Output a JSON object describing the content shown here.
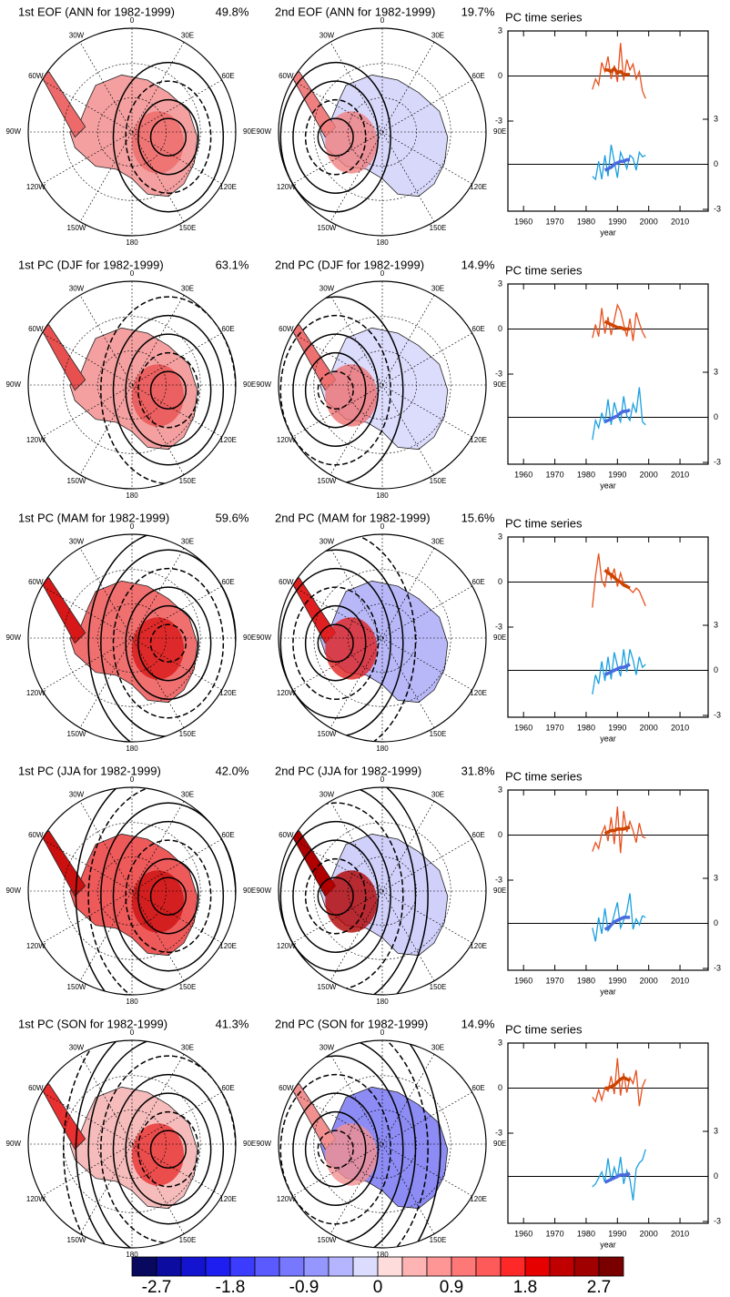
{
  "map_labels": [
    "0",
    "30E",
    "60E",
    "90E",
    "120E",
    "150E",
    "180",
    "150W",
    "120W",
    "90W",
    "60W",
    "30W"
  ],
  "rows": [
    {
      "maps": [
        {
          "title": "1st EOF (ANN for 1982-1999)",
          "variance": "49.8%"
        },
        {
          "title": "2nd EOF (ANN for 1982-1999)",
          "variance": "19.7%"
        }
      ]
    },
    {
      "maps": [
        {
          "title": "1st PC (DJF for 1982-1999)",
          "variance": "63.1%"
        },
        {
          "title": "2nd PC (DJF for 1982-1999)",
          "variance": "14.9%"
        }
      ]
    },
    {
      "maps": [
        {
          "title": "1st PC (MAM for 1982-1999)",
          "variance": "59.6%"
        },
        {
          "title": "2nd PC (MAM for 1982-1999)",
          "variance": "15.6%"
        }
      ]
    },
    {
      "maps": [
        {
          "title": "1st PC (JJA for 1982-1999)",
          "variance": "42.0%"
        },
        {
          "title": "2nd PC (JJA for 1982-1999)",
          "variance": "31.8%"
        }
      ]
    },
    {
      "maps": [
        {
          "title": "1st PC (SON for 1982-1999)",
          "variance": "41.3%"
        },
        {
          "title": "2nd PC (SON for 1982-1999)",
          "variance": "14.9%"
        }
      ]
    }
  ],
  "chart_data": [
    {
      "type": "line",
      "title": "PC time series",
      "xlabel": "year",
      "xlim": [
        1955,
        2019
      ],
      "xticks": [
        1960,
        1970,
        1980,
        1990,
        2000,
        2010
      ],
      "ylim": [
        -3,
        3
      ],
      "yticks": [
        3,
        0,
        -3
      ],
      "y2lim": [
        -3,
        3
      ],
      "y2ticks": [
        3,
        0,
        -3
      ],
      "x": [
        1982,
        1983,
        1984,
        1985,
        1986,
        1987,
        1988,
        1989,
        1990,
        1991,
        1992,
        1993,
        1994,
        1995,
        1996,
        1997,
        1998,
        1999
      ],
      "series": [
        {
          "color": "#e8501e",
          "values": [
            -0.9,
            -0.2,
            -0.6,
            0.9,
            0.3,
            1.3,
            -0.2,
            0.7,
            -0.4,
            2.2,
            -0.3,
            1.1,
            0.4,
            0.8,
            -0.2,
            0.3,
            -1.0,
            -1.5
          ]
        },
        {
          "color": "#1aa0e0",
          "axis": "y2",
          "values": [
            -0.8,
            -1.0,
            0.2,
            -1.0,
            0.6,
            -0.8,
            1.3,
            0.2,
            -0.9,
            0.8,
            0.3,
            -0.3,
            0.6,
            0.4,
            -0.4,
            0.8,
            0.5,
            0.6
          ]
        },
        {
          "color": "#cc4400",
          "x": [
            1986,
            1987,
            1988,
            1989,
            1990,
            1991,
            1992,
            1993,
            1994
          ],
          "values": [
            0.4,
            0.4,
            0.3,
            0.5,
            0.2,
            0.3,
            0.1,
            0.1,
            0.1
          ]
        },
        {
          "color": "#4a6ae0",
          "axis": "y2",
          "x": [
            1986,
            1987,
            1988,
            1989,
            1990,
            1991,
            1992,
            1993,
            1994
          ],
          "values": [
            -0.4,
            -0.3,
            -0.2,
            0,
            0.1,
            0.2,
            0.2,
            0.3,
            0.3
          ]
        }
      ]
    },
    {
      "type": "line",
      "title": "PC time series",
      "xlabel": "year",
      "xlim": [
        1955,
        2019
      ],
      "xticks": [
        1960,
        1970,
        1980,
        1990,
        2000,
        2010
      ],
      "ylim": [
        -3,
        3
      ],
      "yticks": [
        3,
        0,
        -3
      ],
      "y2lim": [
        -3,
        3
      ],
      "y2ticks": [
        3,
        0,
        -3
      ],
      "x": [
        1982,
        1983,
        1984,
        1985,
        1986,
        1987,
        1988,
        1989,
        1990,
        1991,
        1992,
        1993,
        1994,
        1995,
        1996,
        1997,
        1998,
        1999
      ],
      "series": [
        {
          "color": "#e8501e",
          "values": [
            -0.6,
            0.3,
            -0.5,
            1.4,
            -0.3,
            0.8,
            -0.4,
            0.6,
            1.6,
            1.2,
            0.3,
            -0.5,
            0.7,
            -0.8,
            1.1,
            0.4,
            -0.2,
            -0.6
          ]
        },
        {
          "color": "#1aa0e0",
          "axis": "y2",
          "values": [
            -1.5,
            -0.2,
            -0.7,
            0.3,
            -0.4,
            1.2,
            -0.5,
            1.0,
            0.2,
            -0.3,
            1.4,
            0.1,
            -0.2,
            0.9,
            0.3,
            2.0,
            -0.3,
            -0.5
          ]
        },
        {
          "color": "#cc4400",
          "x": [
            1986,
            1987,
            1988,
            1989,
            1990,
            1991,
            1992,
            1993,
            1994
          ],
          "values": [
            0.5,
            0.4,
            0.3,
            0.2,
            0.1,
            0.1,
            0,
            0,
            0
          ]
        },
        {
          "color": "#4a6ae0",
          "axis": "y2",
          "x": [
            1986,
            1987,
            1988,
            1989,
            1990,
            1991,
            1992,
            1993,
            1994
          ],
          "values": [
            -0.3,
            -0.2,
            -0.1,
            0,
            0.1,
            0.3,
            0.4,
            0.4,
            0.5
          ]
        }
      ]
    },
    {
      "type": "line",
      "title": "PC time series",
      "xlabel": "year",
      "xlim": [
        1955,
        2019
      ],
      "xticks": [
        1960,
        1970,
        1980,
        1990,
        2000,
        2010
      ],
      "ylim": [
        -3,
        3
      ],
      "yticks": [
        3,
        0,
        -3
      ],
      "y2lim": [
        -3,
        3
      ],
      "y2ticks": [
        3,
        0,
        -3
      ],
      "x": [
        1982,
        1983,
        1984,
        1985,
        1986,
        1987,
        1988,
        1989,
        1990,
        1991,
        1992,
        1993,
        1994,
        1995,
        1996,
        1997,
        1998,
        1999
      ],
      "series": [
        {
          "color": "#e8501e",
          "values": [
            -1.7,
            0.4,
            1.9,
            0.1,
            -0.3,
            1.0,
            0.2,
            0.9,
            -0.3,
            0.6,
            -0.1,
            -0.2,
            -0.5,
            -0.7,
            -0.4,
            -0.6,
            -1.1,
            -1.6
          ]
        },
        {
          "color": "#1aa0e0",
          "axis": "y2",
          "values": [
            -1.6,
            -0.3,
            -0.9,
            0.6,
            -0.7,
            0.9,
            -0.6,
            1.2,
            0.3,
            -0.4,
            1.4,
            -0.1,
            1.4,
            0.7,
            -0.3,
            0.9,
            0.2,
            0.4
          ]
        },
        {
          "color": "#cc4400",
          "x": [
            1986,
            1987,
            1988,
            1989,
            1990,
            1991,
            1992,
            1993,
            1994
          ],
          "values": [
            0.8,
            0.6,
            0.5,
            0.3,
            0.1,
            0,
            -0.2,
            -0.3,
            -0.4
          ]
        },
        {
          "color": "#4a6ae0",
          "axis": "y2",
          "x": [
            1986,
            1987,
            1988,
            1989,
            1990,
            1991,
            1992,
            1993,
            1994
          ],
          "values": [
            -0.3,
            -0.2,
            -0.1,
            0,
            0.1,
            0.2,
            0.2,
            0.3,
            0.4
          ]
        }
      ]
    },
    {
      "type": "line",
      "title": "PC time series",
      "xlabel": "year",
      "xlim": [
        1955,
        2019
      ],
      "xticks": [
        1960,
        1970,
        1980,
        1990,
        2000,
        2010
      ],
      "ylim": [
        -3,
        3
      ],
      "yticks": [
        3,
        0,
        -3
      ],
      "y2lim": [
        -3,
        3
      ],
      "y2ticks": [
        3,
        0,
        -3
      ],
      "x": [
        1982,
        1983,
        1984,
        1985,
        1986,
        1987,
        1988,
        1989,
        1990,
        1991,
        1992,
        1993,
        1994,
        1995,
        1996,
        1997,
        1998,
        1999
      ],
      "series": [
        {
          "color": "#e8501e",
          "values": [
            -1.1,
            -0.5,
            -0.9,
            0.1,
            0.6,
            -0.4,
            1.2,
            -0.6,
            1.9,
            -1.2,
            1.6,
            0.2,
            0.9,
            0.3,
            -0.5,
            0.8,
            -0.1,
            -0.2
          ]
        },
        {
          "color": "#1aa0e0",
          "axis": "y2",
          "values": [
            -0.3,
            -1.2,
            0.4,
            -0.7,
            1.0,
            -0.5,
            -0.2,
            0.6,
            1.4,
            -0.3,
            0.2,
            0.8,
            2.0,
            -0.4,
            0.3,
            -0.1,
            0.5,
            0.4
          ]
        },
        {
          "color": "#cc4400",
          "x": [
            1986,
            1987,
            1988,
            1989,
            1990,
            1991,
            1992,
            1993,
            1994
          ],
          "values": [
            0.1,
            0.2,
            0.3,
            0.3,
            0.4,
            0.4,
            0.4,
            0.5,
            0.5
          ]
        },
        {
          "color": "#4a6ae0",
          "axis": "y2",
          "x": [
            1986,
            1987,
            1988,
            1989,
            1990,
            1991,
            1992,
            1993,
            1994
          ],
          "values": [
            -0.4,
            -0.3,
            -0.1,
            0.1,
            0.2,
            0.3,
            0.4,
            0.4,
            0.4
          ]
        }
      ]
    },
    {
      "type": "line",
      "title": "PC time series",
      "xlabel": "year",
      "xlim": [
        1955,
        2019
      ],
      "xticks": [
        1960,
        1970,
        1980,
        1990,
        2000,
        2010
      ],
      "ylim": [
        -3,
        3
      ],
      "yticks": [
        3,
        0,
        -3
      ],
      "y2lim": [
        -3,
        3
      ],
      "y2ticks": [
        3,
        0,
        -3
      ],
      "x": [
        1982,
        1983,
        1984,
        1985,
        1986,
        1987,
        1988,
        1989,
        1990,
        1991,
        1992,
        1993,
        1994,
        1995,
        1996,
        1997,
        1998,
        1999
      ],
      "series": [
        {
          "color": "#e8501e",
          "values": [
            -0.6,
            -0.9,
            -0.1,
            -0.8,
            0,
            -0.2,
            0.8,
            -0.4,
            2.0,
            -0.5,
            1.0,
            -0.3,
            0.7,
            0.3,
            1.2,
            -1.2,
            0.1,
            0.6
          ]
        },
        {
          "color": "#1aa0e0",
          "axis": "y2",
          "values": [
            -0.7,
            -0.5,
            -0.1,
            0.3,
            -0.4,
            1.2,
            -0.3,
            0.6,
            -0.1,
            1.3,
            -0.5,
            0.4,
            -0.2,
            -1.6,
            0.5,
            0.9,
            1.1,
            1.8
          ]
        },
        {
          "color": "#cc4400",
          "x": [
            1986,
            1987,
            1988,
            1989,
            1990,
            1991,
            1992,
            1993,
            1994
          ],
          "values": [
            0,
            0,
            0.1,
            0.2,
            0.4,
            0.6,
            0.7,
            0.6,
            0.5
          ]
        },
        {
          "color": "#4a6ae0",
          "axis": "y2",
          "x": [
            1986,
            1987,
            1988,
            1989,
            1990,
            1991,
            1992,
            1993,
            1994
          ],
          "values": [
            -0.4,
            -0.3,
            -0.2,
            -0.1,
            0,
            0.1,
            0.1,
            0.1,
            0.2
          ]
        }
      ]
    }
  ],
  "colorbar": {
    "bounds": [
      -3,
      3
    ],
    "ticks": [
      -2.7,
      -1.8,
      -0.9,
      0,
      0.9,
      1.8,
      2.7
    ],
    "colors": [
      "#08085e",
      "#0c0ca0",
      "#1414d0",
      "#1e1ef0",
      "#3c3cff",
      "#5a5aff",
      "#7878ff",
      "#9696ff",
      "#b4b4ff",
      "#dcdcff",
      "#ffdcdc",
      "#ffb4b4",
      "#ff9696",
      "#ff7878",
      "#ff5a5a",
      "#ff2828",
      "#e60000",
      "#c00000",
      "#a00000",
      "#7a0000"
    ]
  }
}
